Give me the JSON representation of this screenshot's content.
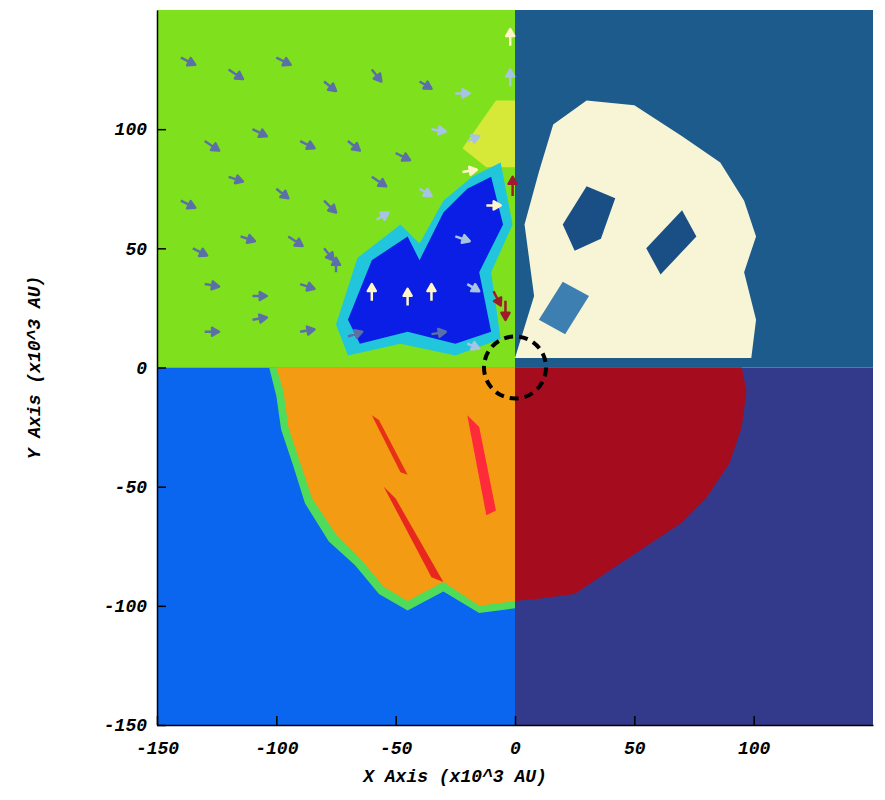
{
  "chart_data": {
    "type": "field_map",
    "x_label": "X Axis (x10^3 AU)",
    "y_label": "Y Axis (x10^3 AU)",
    "xlim": [
      -150,
      150
    ],
    "ylim": [
      -150,
      150
    ],
    "xticks": [
      -150,
      -100,
      -50,
      0,
      50,
      100
    ],
    "yticks": [
      -150,
      -100,
      -50,
      0,
      50,
      100
    ],
    "quadrants": [
      {
        "x": [
          -150,
          0
        ],
        "y": [
          0,
          150
        ],
        "color": "#7fe01e"
      },
      {
        "x": [
          0,
          150
        ],
        "y": [
          0,
          150
        ],
        "color": "#1d5b8d"
      },
      {
        "x": [
          -150,
          0
        ],
        "y": [
          -150,
          0
        ],
        "color": "#0a66ee"
      },
      {
        "x": [
          0,
          150
        ],
        "y": [
          -150,
          0
        ],
        "color": "#333a8c"
      }
    ],
    "regions": [
      {
        "color": "#d6e838",
        "points": [
          [
            -22,
            92
          ],
          [
            -8,
            112
          ],
          [
            0,
            112
          ],
          [
            0,
            84
          ],
          [
            -12,
            84
          ]
        ]
      },
      {
        "color": "#22c6dc",
        "points": [
          [
            -75,
            18
          ],
          [
            -66,
            46
          ],
          [
            -48,
            60
          ],
          [
            -40,
            52
          ],
          [
            -30,
            70
          ],
          [
            -18,
            80
          ],
          [
            -6,
            86
          ],
          [
            -1,
            60
          ],
          [
            -10,
            40
          ],
          [
            -6,
            12
          ],
          [
            -25,
            5
          ],
          [
            -48,
            10
          ],
          [
            -70,
            5
          ]
        ]
      },
      {
        "color": "#0a1ee6",
        "points": [
          [
            -70,
            20
          ],
          [
            -60,
            45
          ],
          [
            -45,
            55
          ],
          [
            -40,
            45
          ],
          [
            -30,
            65
          ],
          [
            -20,
            75
          ],
          [
            -10,
            80
          ],
          [
            -5,
            60
          ],
          [
            -15,
            40
          ],
          [
            -10,
            15
          ],
          [
            -25,
            10
          ],
          [
            -45,
            15
          ],
          [
            -65,
            10
          ]
        ]
      },
      {
        "color": "#f7f5d6",
        "points": [
          [
            0,
            4
          ],
          [
            8,
            30
          ],
          [
            4,
            60
          ],
          [
            10,
            82
          ],
          [
            16,
            102
          ],
          [
            30,
            112
          ],
          [
            50,
            110
          ],
          [
            70,
            97
          ],
          [
            86,
            86
          ],
          [
            96,
            70
          ],
          [
            101,
            55
          ],
          [
            96,
            40
          ],
          [
            101,
            20
          ],
          [
            99,
            4
          ]
        ]
      },
      {
        "color": "#1a4f86",
        "points": [
          [
            20,
            60
          ],
          [
            30,
            76
          ],
          [
            42,
            71
          ],
          [
            36,
            54
          ],
          [
            25,
            49
          ]
        ]
      },
      {
        "color": "#1a4f86",
        "points": [
          [
            55,
            50
          ],
          [
            70,
            66
          ],
          [
            76,
            55
          ],
          [
            61,
            39
          ]
        ]
      },
      {
        "color": "#3d7fb0",
        "points": [
          [
            10,
            20
          ],
          [
            20,
            36
          ],
          [
            31,
            30
          ],
          [
            21,
            14
          ]
        ]
      },
      {
        "color": "#4fdc5a",
        "points": [
          [
            0,
            0
          ],
          [
            -103,
            0
          ],
          [
            -100,
            -12
          ],
          [
            -98,
            -26
          ],
          [
            -93,
            -41
          ],
          [
            -88,
            -57
          ],
          [
            -78,
            -73
          ],
          [
            -67,
            -83
          ],
          [
            -57,
            -95
          ],
          [
            -45,
            -102
          ],
          [
            -30,
            -94
          ],
          [
            -15,
            -103
          ],
          [
            0,
            -101
          ]
        ]
      },
      {
        "color": "#f39b12",
        "points": [
          [
            0,
            0
          ],
          [
            -100,
            0
          ],
          [
            -97,
            -10
          ],
          [
            -95,
            -25
          ],
          [
            -90,
            -40
          ],
          [
            -85,
            -55
          ],
          [
            -75,
            -70
          ],
          [
            -65,
            -80
          ],
          [
            -55,
            -92
          ],
          [
            -45,
            -98
          ],
          [
            -30,
            -90
          ],
          [
            -15,
            -100
          ],
          [
            0,
            -98
          ]
        ]
      },
      {
        "color": "#e8281e",
        "points": [
          [
            -55,
            -50
          ],
          [
            -50,
            -55
          ],
          [
            -30,
            -90
          ],
          [
            -35,
            -88
          ]
        ]
      },
      {
        "color": "#ff2a3a",
        "points": [
          [
            -20,
            -20
          ],
          [
            -15,
            -25
          ],
          [
            -8,
            -60
          ],
          [
            -12,
            -62
          ]
        ]
      },
      {
        "color": "#e83018",
        "points": [
          [
            -60,
            -20
          ],
          [
            -57,
            -22
          ],
          [
            -45,
            -45
          ],
          [
            -48,
            -44
          ]
        ]
      },
      {
        "color": "#a50d1e",
        "points": [
          [
            0,
            0
          ],
          [
            95,
            0
          ],
          [
            97,
            -10
          ],
          [
            95,
            -25
          ],
          [
            90,
            -40
          ],
          [
            80,
            -55
          ],
          [
            70,
            -65
          ],
          [
            55,
            -75
          ],
          [
            40,
            -85
          ],
          [
            25,
            -95
          ],
          [
            10,
            -97
          ],
          [
            0,
            -98
          ]
        ]
      }
    ],
    "vectors": [
      {
        "x": -140,
        "y": 130,
        "dx": 6,
        "dy": -3,
        "color": "#5b6fa8"
      },
      {
        "x": -120,
        "y": 125,
        "dx": 6,
        "dy": -4,
        "color": "#5b6fa8"
      },
      {
        "x": -100,
        "y": 130,
        "dx": 6,
        "dy": -3,
        "color": "#5b6fa8"
      },
      {
        "x": -80,
        "y": 120,
        "dx": 5,
        "dy": -4,
        "color": "#5b6fa8"
      },
      {
        "x": -60,
        "y": 125,
        "dx": 4,
        "dy": -5,
        "color": "#5b6fa8"
      },
      {
        "x": -40,
        "y": 120,
        "dx": 5,
        "dy": -3,
        "color": "#5b6fa8"
      },
      {
        "x": -25,
        "y": 115,
        "dx": 6,
        "dy": 0,
        "color": "#a8c4e4"
      },
      {
        "x": -130,
        "y": 95,
        "dx": 6,
        "dy": -4,
        "color": "#5b6fa8"
      },
      {
        "x": -110,
        "y": 100,
        "dx": 6,
        "dy": -3,
        "color": "#5b6fa8"
      },
      {
        "x": -90,
        "y": 95,
        "dx": 6,
        "dy": -3,
        "color": "#5b6fa8"
      },
      {
        "x": -70,
        "y": 95,
        "dx": 5,
        "dy": -4,
        "color": "#5b6fa8"
      },
      {
        "x": -50,
        "y": 90,
        "dx": 6,
        "dy": -3,
        "color": "#5b6fa8"
      },
      {
        "x": -35,
        "y": 100,
        "dx": 6,
        "dy": -1,
        "color": "#a8c4e4"
      },
      {
        "x": -20,
        "y": 95,
        "dx": 5,
        "dy": 2,
        "color": "#a8c4e4"
      },
      {
        "x": -140,
        "y": 70,
        "dx": 6,
        "dy": -3,
        "color": "#5b6fa8"
      },
      {
        "x": -120,
        "y": 80,
        "dx": 6,
        "dy": -2,
        "color": "#5b6fa8"
      },
      {
        "x": -100,
        "y": 75,
        "dx": 5,
        "dy": -4,
        "color": "#5b6fa8"
      },
      {
        "x": -80,
        "y": 70,
        "dx": 5,
        "dy": -5,
        "color": "#5b6fa8"
      },
      {
        "x": -60,
        "y": 80,
        "dx": 6,
        "dy": -4,
        "color": "#5b6fa8"
      },
      {
        "x": -40,
        "y": 75,
        "dx": 5,
        "dy": -3,
        "color": "#a8c4e4"
      },
      {
        "x": -22,
        "y": 82,
        "dx": 6,
        "dy": 1,
        "color": "#fff5c8"
      },
      {
        "x": -12,
        "y": 68,
        "dx": 6,
        "dy": 0,
        "color": "#fff5c8"
      },
      {
        "x": -135,
        "y": 50,
        "dx": 6,
        "dy": -3,
        "color": "#5b6fa8"
      },
      {
        "x": -115,
        "y": 55,
        "dx": 6,
        "dy": -2,
        "color": "#5b6fa8"
      },
      {
        "x": -95,
        "y": 55,
        "dx": 6,
        "dy": -4,
        "color": "#5b6fa8"
      },
      {
        "x": -80,
        "y": 50,
        "dx": 4,
        "dy": -5,
        "color": "#5b6fa8"
      },
      {
        "x": -58,
        "y": 62,
        "dx": 5,
        "dy": 3,
        "color": "#a8c4e4"
      },
      {
        "x": -25,
        "y": 55,
        "dx": 6,
        "dy": -2,
        "color": "#a8c4e4"
      },
      {
        "x": -130,
        "y": 35,
        "dx": 6,
        "dy": -1,
        "color": "#5b6fa8"
      },
      {
        "x": -110,
        "y": 30,
        "dx": 6,
        "dy": 0,
        "color": "#5b6fa8"
      },
      {
        "x": -90,
        "y": 35,
        "dx": 6,
        "dy": -2,
        "color": "#5b6fa8"
      },
      {
        "x": -75,
        "y": 40,
        "dx": 0,
        "dy": 6,
        "color": "#5b6fa8"
      },
      {
        "x": -60,
        "y": 28,
        "dx": 0,
        "dy": 7,
        "color": "#fff5c8"
      },
      {
        "x": -45,
        "y": 26,
        "dx": 0,
        "dy": 7,
        "color": "#fff5c8"
      },
      {
        "x": -35,
        "y": 28,
        "dx": 0,
        "dy": 7,
        "color": "#fff5c8"
      },
      {
        "x": -20,
        "y": 35,
        "dx": 5,
        "dy": -3,
        "color": "#a8c4e4"
      },
      {
        "x": -130,
        "y": 15,
        "dx": 6,
        "dy": 0,
        "color": "#5b6fa8"
      },
      {
        "x": -110,
        "y": 20,
        "dx": 6,
        "dy": 1,
        "color": "#5b6fa8"
      },
      {
        "x": -90,
        "y": 15,
        "dx": 6,
        "dy": 1,
        "color": "#5b6fa8"
      },
      {
        "x": -70,
        "y": 13,
        "dx": 6,
        "dy": 2,
        "color": "#5b6fa8"
      },
      {
        "x": -35,
        "y": 14,
        "dx": 6,
        "dy": 1,
        "color": "#5b6fa8"
      },
      {
        "x": -20,
        "y": 10,
        "dx": 5,
        "dy": -2,
        "color": "#a8c4e4"
      },
      {
        "x": -2,
        "y": 135,
        "dx": 0,
        "dy": 7,
        "color": "#fff5c8"
      },
      {
        "x": -2,
        "y": 118,
        "dx": 0,
        "dy": 7,
        "color": "#a8c4e4"
      },
      {
        "x": -1,
        "y": 72,
        "dx": 0,
        "dy": 8,
        "color": "#9c1c2c"
      },
      {
        "x": -4,
        "y": 28,
        "dx": 0,
        "dy": -8,
        "color": "#9c1c2c"
      },
      {
        "x": -9,
        "y": 32,
        "dx": 3,
        "dy": -6,
        "color": "#9c1c2c"
      }
    ],
    "circle": {
      "x": 0,
      "y": 0,
      "r": 13
    }
  }
}
